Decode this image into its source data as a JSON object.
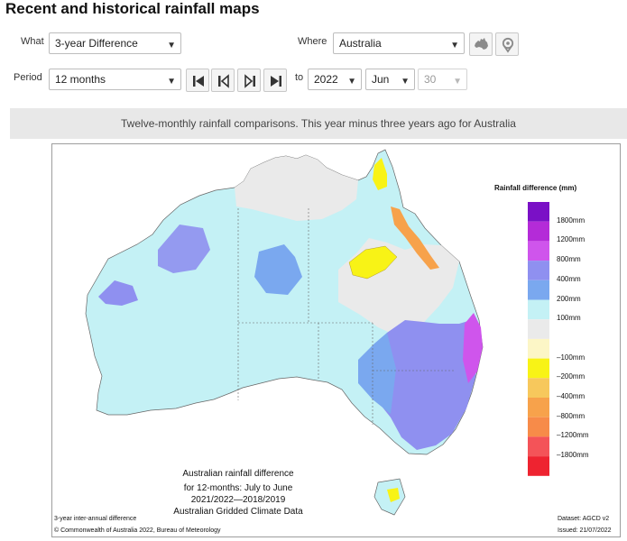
{
  "page_title": "Recent and historical rainfall maps",
  "controls": {
    "what_label": "What",
    "what_value": "3-year Difference",
    "where_label": "Where",
    "where_value": "Australia",
    "period_label": "Period",
    "period_value": "12 months",
    "to_label": "to",
    "year_value": "2022",
    "month_value": "Jun",
    "day_value": "30"
  },
  "icons": {
    "australia_map": "australia-map-icon",
    "location": "location-pin-icon",
    "first": "skip-first-icon",
    "prev": "step-back-icon",
    "next": "step-forward-icon",
    "last": "skip-last-icon",
    "dropdown": "chevron-down-icon"
  },
  "banner": "Twelve-monthly rainfall comparisons. This year minus three years ago for Australia",
  "map": {
    "legend_title": "Rainfall difference (mm)",
    "legend": [
      {
        "label": "1800mm",
        "color": "#7a10c6"
      },
      {
        "label": "1200mm",
        "color": "#b42bd8"
      },
      {
        "label": "800mm",
        "color": "#cf55ec"
      },
      {
        "label": "400mm",
        "color": "#8f90f0"
      },
      {
        "label": "200mm",
        "color": "#7aa8ef"
      },
      {
        "label": "100mm",
        "color": "#c4f1f5"
      },
      {
        "label": "",
        "color": "#eaeaea"
      },
      {
        "label": "–100mm",
        "color": "#fcf6c6"
      },
      {
        "label": "–200mm",
        "color": "#f8f316"
      },
      {
        "label": "–400mm",
        "color": "#f7c85c"
      },
      {
        "label": "–800mm",
        "color": "#f7a24b"
      },
      {
        "label": "–1200mm",
        "color": "#f78b49"
      },
      {
        "label": "–1800mm",
        "color": "#f45358"
      },
      {
        "label": "",
        "color": "#ee2330"
      }
    ],
    "caption_line1": "Australian rainfall difference",
    "caption_line2": "for 12-months: July to June",
    "caption_line3": "2021/2022—2018/2019",
    "caption_line4": "Australian Gridded Climate Data",
    "footer_left": "3-year inter-annual difference",
    "footer_copyright": "© Commonwealth of Australia 2022, Bureau of Meteorology",
    "footer_dataset": "Dataset: AGCD v2",
    "footer_issued": "Issued: 21/07/2022"
  }
}
